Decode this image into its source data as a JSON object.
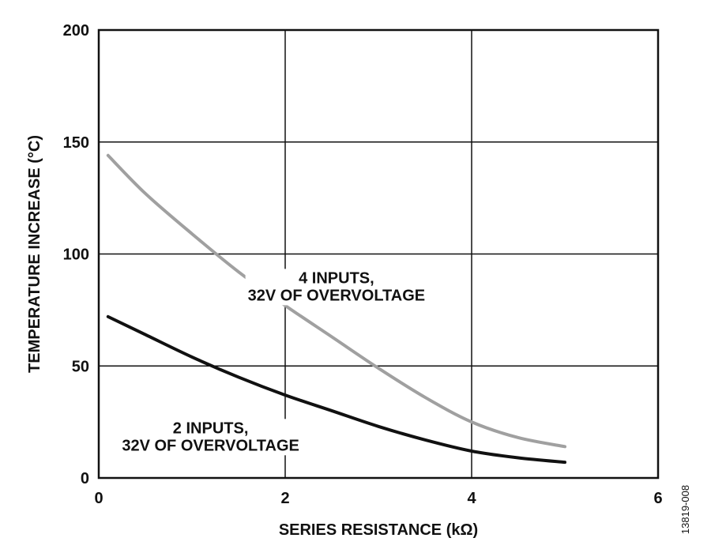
{
  "chart_data": {
    "type": "line",
    "xlabel": "SERIES RESISTANCE (kΩ)",
    "ylabel": "TEMPERATURE INCREASE (°C)",
    "xlim": [
      0,
      6
    ],
    "ylim": [
      0,
      200
    ],
    "x_ticks": [
      0,
      2,
      4,
      6
    ],
    "y_ticks": [
      0,
      50,
      100,
      150,
      200
    ],
    "x_tick_labels": [
      "0",
      "2",
      "4",
      "6"
    ],
    "y_tick_labels": [
      "0",
      "50",
      "100",
      "150",
      "200"
    ],
    "grid": true,
    "series": [
      {
        "color": "#a0a0a0",
        "x": [
          0.1,
          0.5,
          1.0,
          1.5,
          2.0,
          2.5,
          3.0,
          3.5,
          4.0,
          4.5,
          5.0
        ],
        "y": [
          144,
          127,
          109,
          92,
          77,
          63,
          49,
          36,
          25,
          18,
          14
        ]
      },
      {
        "color": "#111111",
        "x": [
          0.1,
          0.5,
          1.0,
          1.5,
          2.0,
          2.5,
          3.0,
          3.5,
          4.0,
          4.5,
          5.0
        ],
        "y": [
          72,
          64,
          54,
          45,
          37,
          30,
          23,
          17,
          12,
          9,
          7
        ]
      }
    ],
    "annotations": [
      {
        "lines": [
          "4 INPUTS,",
          "32V OF OVERVOLTAGE"
        ],
        "x": 2.55,
        "y": 87
      },
      {
        "lines": [
          "2 INPUTS,",
          "32V OF OVERVOLTAGE"
        ],
        "x": 1.2,
        "y": 20
      }
    ],
    "figure_id": "13819-008"
  }
}
